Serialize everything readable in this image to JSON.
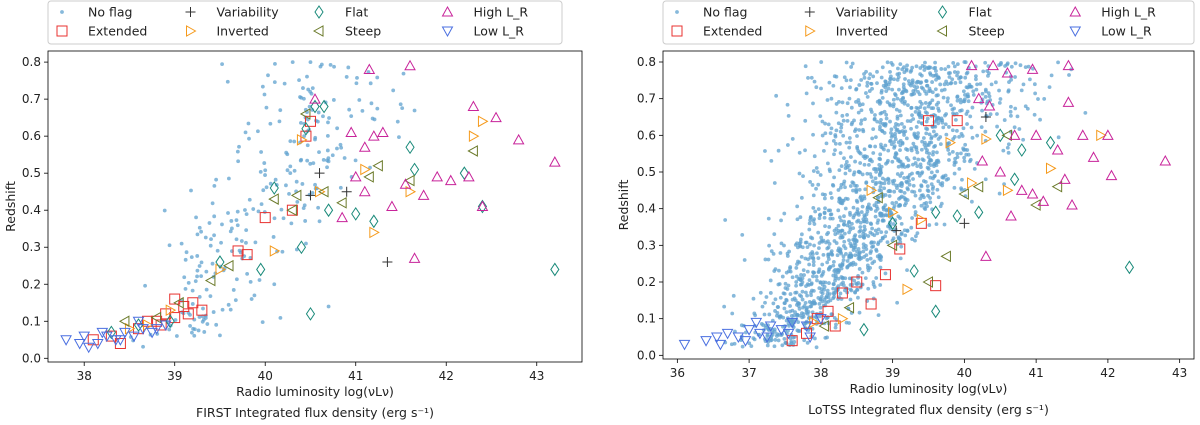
{
  "colors": {
    "no_flag": "#5fa2cf",
    "extended": "#e8312f",
    "variability": "#333333",
    "flat": "#1a8a7a",
    "inverted": "#f59a1c",
    "steep": "#6b7a2a",
    "high_lr": "#c8239a",
    "low_lr": "#4a6fe0"
  },
  "legend": {
    "entries": [
      {
        "name": "No flag",
        "symbol": "dot",
        "color_key": "no_flag"
      },
      {
        "name": "Extended",
        "symbol": "square",
        "color_key": "extended"
      },
      {
        "name": "Variability",
        "symbol": "plus",
        "color_key": "variability"
      },
      {
        "name": "Inverted",
        "symbol": "tri-right",
        "color_key": "inverted"
      },
      {
        "name": "Flat",
        "symbol": "diamond",
        "color_key": "flat"
      },
      {
        "name": "Steep",
        "symbol": "tri-left",
        "color_key": "steep"
      },
      {
        "name": "High L_R",
        "symbol": "tri-up",
        "color_key": "high_lr"
      },
      {
        "name": "Low L_R",
        "symbol": "tri-down",
        "color_key": "low_lr"
      }
    ]
  },
  "chart_data": [
    {
      "type": "scatter",
      "ylabel": "Redshift",
      "xlabel": "Radio luminosity log(νLν)",
      "xlabel2": "FIRST Integrated flux density (erg s⁻¹)",
      "xlim": [
        37.6,
        43.5
      ],
      "ylim": [
        -0.01,
        0.83
      ],
      "xticks": [
        38,
        39,
        40,
        41,
        42,
        43
      ],
      "yticks": [
        0.0,
        0.1,
        0.2,
        0.3,
        0.4,
        0.5,
        0.6,
        0.7,
        0.8
      ],
      "no_flag_cloud": {
        "count": 260,
        "seed": 11,
        "x_center_at_z0": 38.4,
        "x_slope": 2.4,
        "x_spread": 0.45,
        "z_min": 0.03,
        "z_max": 0.8
      },
      "series": [
        {
          "name": "No flag",
          "points": [
            [
              40.5,
              0.8
            ],
            [
              40.9,
              0.76
            ],
            [
              40.7,
              0.14
            ],
            [
              40.45,
              0.31
            ],
            [
              40.1,
              0.2
            ],
            [
              39.85,
              0.16
            ],
            [
              40.6,
              0.37
            ]
          ]
        },
        {
          "name": "Extended",
          "points": [
            [
              38.1,
              0.05
            ],
            [
              38.3,
              0.06
            ],
            [
              38.4,
              0.04
            ],
            [
              38.6,
              0.08
            ],
            [
              38.8,
              0.1
            ],
            [
              38.9,
              0.12
            ],
            [
              39.0,
              0.11
            ],
            [
              39.1,
              0.14
            ],
            [
              39.2,
              0.15
            ],
            [
              39.3,
              0.13
            ],
            [
              39.0,
              0.16
            ],
            [
              38.85,
              0.09
            ],
            [
              39.7,
              0.29
            ],
            [
              39.8,
              0.28
            ],
            [
              40.0,
              0.38
            ],
            [
              40.3,
              0.4
            ],
            [
              40.45,
              0.6
            ],
            [
              40.5,
              0.64
            ],
            [
              38.7,
              0.1
            ],
            [
              39.15,
              0.12
            ]
          ]
        },
        {
          "name": "Variability",
          "points": [
            [
              40.5,
              0.44
            ],
            [
              41.35,
              0.26
            ],
            [
              40.9,
              0.45
            ],
            [
              40.6,
              0.5
            ]
          ]
        },
        {
          "name": "Inverted",
          "points": [
            [
              38.5,
              0.08
            ],
            [
              38.95,
              0.13
            ],
            [
              39.5,
              0.24
            ],
            [
              40.1,
              0.29
            ],
            [
              40.4,
              0.59
            ],
            [
              40.6,
              0.45
            ],
            [
              41.1,
              0.51
            ],
            [
              41.2,
              0.34
            ],
            [
              41.6,
              0.45
            ],
            [
              42.3,
              0.6
            ],
            [
              42.4,
              0.64
            ],
            [
              38.7,
              0.09
            ]
          ]
        },
        {
          "name": "Flat",
          "points": [
            [
              38.3,
              0.07
            ],
            [
              38.6,
              0.09
            ],
            [
              38.95,
              0.1
            ],
            [
              39.5,
              0.26
            ],
            [
              39.95,
              0.24
            ],
            [
              40.1,
              0.46
            ],
            [
              40.4,
              0.3
            ],
            [
              40.45,
              0.62
            ],
            [
              40.55,
              0.68
            ],
            [
              40.65,
              0.68
            ],
            [
              40.7,
              0.4
            ],
            [
              41.0,
              0.39
            ],
            [
              41.2,
              0.37
            ],
            [
              41.6,
              0.57
            ],
            [
              41.65,
              0.51
            ],
            [
              42.2,
              0.5
            ],
            [
              42.4,
              0.41
            ],
            [
              43.2,
              0.24
            ],
            [
              40.5,
              0.12
            ]
          ]
        },
        {
          "name": "Steep",
          "points": [
            [
              38.45,
              0.1
            ],
            [
              38.8,
              0.11
            ],
            [
              39.05,
              0.15
            ],
            [
              39.4,
              0.21
            ],
            [
              39.6,
              0.25
            ],
            [
              40.1,
              0.43
            ],
            [
              40.3,
              0.4
            ],
            [
              40.35,
              0.44
            ],
            [
              40.45,
              0.66
            ],
            [
              40.65,
              0.45
            ],
            [
              40.85,
              0.42
            ],
            [
              41.15,
              0.49
            ],
            [
              41.25,
              0.52
            ],
            [
              41.6,
              0.48
            ],
            [
              42.3,
              0.56
            ]
          ]
        },
        {
          "name": "High L_R",
          "points": [
            [
              41.15,
              0.78
            ],
            [
              41.6,
              0.79
            ],
            [
              40.95,
              0.61
            ],
            [
              41.2,
              0.6
            ],
            [
              41.3,
              0.61
            ],
            [
              41.1,
              0.57
            ],
            [
              41.55,
              0.47
            ],
            [
              41.75,
              0.44
            ],
            [
              41.9,
              0.49
            ],
            [
              42.05,
              0.48
            ],
            [
              42.25,
              0.49
            ],
            [
              42.3,
              0.68
            ],
            [
              42.55,
              0.65
            ],
            [
              42.8,
              0.59
            ],
            [
              43.2,
              0.53
            ],
            [
              40.85,
              0.38
            ],
            [
              41.0,
              0.49
            ],
            [
              40.55,
              0.7
            ],
            [
              41.4,
              0.41
            ],
            [
              42.4,
              0.41
            ],
            [
              41.65,
              0.27
            ],
            [
              41.1,
              0.45
            ]
          ]
        },
        {
          "name": "Low L_R",
          "points": [
            [
              37.8,
              0.05
            ],
            [
              37.95,
              0.04
            ],
            [
              38.05,
              0.03
            ],
            [
              38.15,
              0.04
            ],
            [
              38.25,
              0.06
            ],
            [
              38.35,
              0.05
            ],
            [
              38.45,
              0.07
            ],
            [
              38.55,
              0.06
            ],
            [
              38.65,
              0.08
            ],
            [
              38.75,
              0.07
            ],
            [
              38.9,
              0.09
            ],
            [
              38.2,
              0.07
            ],
            [
              38.4,
              0.05
            ],
            [
              38.6,
              0.1
            ],
            [
              38.8,
              0.08
            ],
            [
              38.0,
              0.06
            ]
          ]
        }
      ]
    },
    {
      "type": "scatter",
      "ylabel": "Redshift",
      "xlabel": "Radio luminosity log(νLν)",
      "xlabel2": "LoTSS Integrated flux density (erg s⁻¹)",
      "xlim": [
        35.8,
        43.2
      ],
      "ylim": [
        -0.01,
        0.83
      ],
      "xticks": [
        36,
        37,
        38,
        39,
        40,
        41,
        42,
        43
      ],
      "yticks": [
        0.0,
        0.1,
        0.2,
        0.3,
        0.4,
        0.5,
        0.6,
        0.7,
        0.8
      ],
      "no_flag_cloud": {
        "count": 1700,
        "seed": 23,
        "x_center_at_z0": 36.8,
        "x_slope": 2.9,
        "x_spread": 0.6,
        "z_min": 0.02,
        "z_max": 0.8
      },
      "series": [
        {
          "name": "No flag",
          "points": [
            [
              40.0,
              0.8
            ],
            [
              39.8,
              0.77
            ],
            [
              40.3,
              0.72
            ]
          ]
        },
        {
          "name": "Extended",
          "points": [
            [
              37.6,
              0.04
            ],
            [
              37.8,
              0.06
            ],
            [
              38.1,
              0.12
            ],
            [
              38.3,
              0.17
            ],
            [
              38.5,
              0.2
            ],
            [
              38.7,
              0.14
            ],
            [
              38.9,
              0.22
            ],
            [
              39.1,
              0.29
            ],
            [
              39.5,
              0.64
            ],
            [
              39.9,
              0.64
            ],
            [
              39.4,
              0.36
            ],
            [
              38.2,
              0.08
            ],
            [
              37.95,
              0.1
            ],
            [
              39.6,
              0.19
            ]
          ]
        },
        {
          "name": "Variability",
          "points": [
            [
              39.05,
              0.34
            ],
            [
              40.0,
              0.36
            ],
            [
              40.3,
              0.65
            ]
          ]
        },
        {
          "name": "Inverted",
          "points": [
            [
              37.9,
              0.09
            ],
            [
              38.3,
              0.1
            ],
            [
              38.7,
              0.45
            ],
            [
              39.0,
              0.39
            ],
            [
              39.4,
              0.37
            ],
            [
              39.8,
              0.58
            ],
            [
              40.1,
              0.47
            ],
            [
              40.3,
              0.59
            ],
            [
              40.6,
              0.45
            ],
            [
              41.2,
              0.51
            ],
            [
              41.9,
              0.6
            ],
            [
              39.2,
              0.18
            ]
          ]
        },
        {
          "name": "Flat",
          "points": [
            [
              38.6,
              0.07
            ],
            [
              39.0,
              0.36
            ],
            [
              39.3,
              0.23
            ],
            [
              39.6,
              0.39
            ],
            [
              39.9,
              0.38
            ],
            [
              40.2,
              0.39
            ],
            [
              40.5,
              0.6
            ],
            [
              40.7,
              0.48
            ],
            [
              40.8,
              0.56
            ],
            [
              41.2,
              0.58
            ],
            [
              42.3,
              0.24
            ],
            [
              39.6,
              0.12
            ]
          ]
        },
        {
          "name": "Steep",
          "points": [
            [
              38.05,
              0.08
            ],
            [
              38.4,
              0.13
            ],
            [
              38.8,
              0.43
            ],
            [
              39.0,
              0.3
            ],
            [
              39.5,
              0.2
            ],
            [
              39.75,
              0.27
            ],
            [
              40.0,
              0.44
            ],
            [
              40.2,
              0.46
            ],
            [
              40.6,
              0.6
            ],
            [
              41.0,
              0.41
            ],
            [
              41.3,
              0.46
            ]
          ]
        },
        {
          "name": "High L_R",
          "points": [
            [
              40.1,
              0.79
            ],
            [
              40.4,
              0.79
            ],
            [
              40.6,
              0.77
            ],
            [
              40.95,
              0.78
            ],
            [
              41.45,
              0.79
            ],
            [
              40.2,
              0.7
            ],
            [
              40.35,
              0.68
            ],
            [
              41.45,
              0.69
            ],
            [
              40.7,
              0.6
            ],
            [
              41.0,
              0.6
            ],
            [
              41.3,
              0.56
            ],
            [
              41.65,
              0.6
            ],
            [
              42.0,
              0.6
            ],
            [
              40.25,
              0.53
            ],
            [
              40.5,
              0.5
            ],
            [
              40.8,
              0.45
            ],
            [
              41.1,
              0.42
            ],
            [
              41.4,
              0.48
            ],
            [
              41.5,
              0.41
            ],
            [
              41.8,
              0.54
            ],
            [
              42.05,
              0.49
            ],
            [
              42.8,
              0.53
            ],
            [
              40.65,
              0.38
            ],
            [
              40.95,
              0.44
            ],
            [
              40.3,
              0.27
            ]
          ]
        },
        {
          "name": "Low L_R",
          "points": [
            [
              36.1,
              0.03
            ],
            [
              36.4,
              0.04
            ],
            [
              36.55,
              0.05
            ],
            [
              36.7,
              0.06
            ],
            [
              36.85,
              0.05
            ],
            [
              37.0,
              0.07
            ],
            [
              37.15,
              0.06
            ],
            [
              37.3,
              0.08
            ],
            [
              37.45,
              0.07
            ],
            [
              37.6,
              0.09
            ],
            [
              37.8,
              0.08
            ],
            [
              38.0,
              0.1
            ],
            [
              36.6,
              0.03
            ],
            [
              36.95,
              0.04
            ],
            [
              37.25,
              0.05
            ],
            [
              37.55,
              0.06
            ],
            [
              37.85,
              0.05
            ],
            [
              37.1,
              0.09
            ]
          ]
        }
      ]
    }
  ]
}
